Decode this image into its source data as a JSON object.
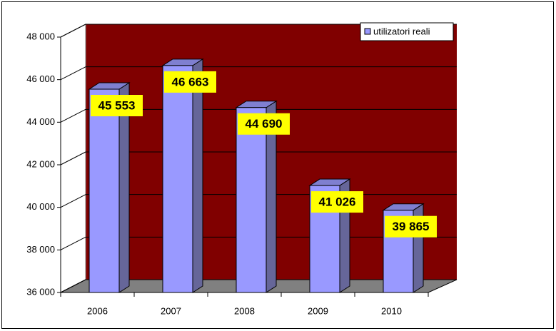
{
  "chart_data": {
    "type": "bar3d",
    "categories": [
      "2006",
      "2007",
      "2008",
      "2009",
      "2010"
    ],
    "series": [
      {
        "name": "utilizatori reali",
        "color": "#9999ff",
        "values": [
          45553,
          46663,
          44690,
          41026,
          39865
        ],
        "value_labels": [
          "45 553",
          "46 663",
          "44 690",
          "41 026",
          "39 865"
        ]
      }
    ],
    "ylim": [
      36000,
      48000
    ],
    "yticks": [
      {
        "value": 36000,
        "label": "36 000"
      },
      {
        "value": 38000,
        "label": "38 000"
      },
      {
        "value": 40000,
        "label": "40 000"
      },
      {
        "value": 42000,
        "label": "42 000"
      },
      {
        "value": 44000,
        "label": "44 000"
      },
      {
        "value": 46000,
        "label": "46 000"
      },
      {
        "value": 48000,
        "label": "48 000"
      }
    ],
    "grid": true,
    "legend": "top-right",
    "wall_color": "#800000",
    "floor_color": "#808080"
  }
}
